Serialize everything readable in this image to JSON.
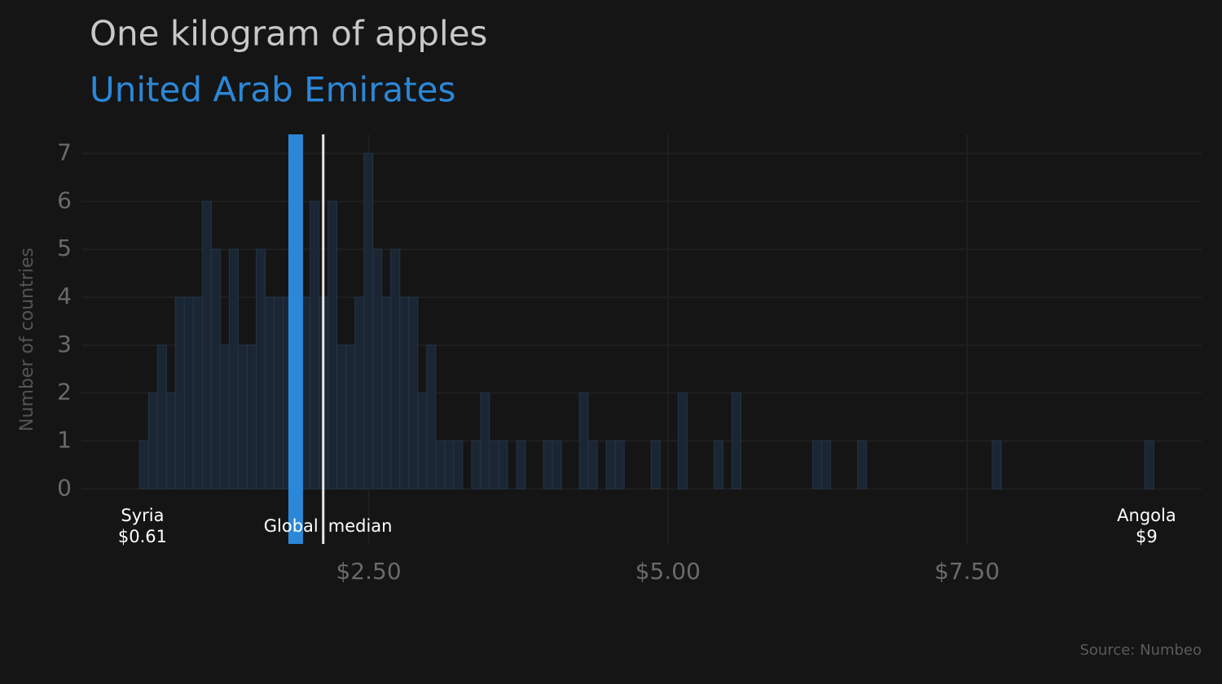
{
  "chart_data": {
    "type": "histogram",
    "title": "One kilogram of apples",
    "subtitle": "United Arab Emirates",
    "ylabel": "Number of countries",
    "source": "Source: Numbeo",
    "bins": [
      0.585,
      0.66,
      0.735,
      0.81,
      0.885,
      0.96,
      1.035,
      1.11,
      1.185,
      1.26,
      1.335,
      1.41,
      1.485,
      1.56,
      1.635,
      1.71,
      1.785,
      1.86,
      1.935,
      2.01,
      2.085,
      2.16,
      2.235,
      2.31,
      2.385,
      2.46,
      2.535,
      2.61,
      2.685,
      2.76,
      2.835,
      2.91,
      2.985,
      3.06,
      3.135,
      3.21,
      3.285,
      3.36,
      3.435,
      3.51,
      3.585,
      3.66,
      3.735,
      3.81,
      3.885,
      3.96,
      4.035,
      4.11,
      4.185,
      4.26,
      4.335,
      4.41,
      4.485,
      4.56,
      4.635,
      4.71,
      4.785,
      4.86,
      4.935,
      5.01,
      5.085,
      5.16,
      5.235,
      5.31,
      5.385,
      5.46,
      5.535,
      5.61,
      5.685,
      5.76,
      5.835,
      5.91,
      5.985,
      6.06,
      6.135,
      6.21,
      6.285,
      6.36,
      6.435,
      6.51,
      6.585,
      6.66,
      6.735,
      6.81,
      6.885,
      6.96,
      7.035,
      7.11,
      7.185,
      7.26,
      7.335,
      7.41,
      7.485,
      7.56,
      7.635,
      7.71,
      7.785,
      7.86,
      7.935,
      8.01,
      8.085,
      8.16,
      8.235,
      8.31,
      8.385,
      8.46,
      8.535,
      8.61,
      8.685,
      8.76,
      8.835,
      8.91,
      8.985,
      9.06
    ],
    "values": [
      1,
      2,
      3,
      2,
      4,
      4,
      4,
      6,
      5,
      3,
      5,
      3,
      3,
      5,
      4,
      4,
      4,
      5,
      4,
      6,
      4,
      6,
      3,
      3,
      4,
      7,
      5,
      4,
      5,
      4,
      4,
      2,
      3,
      1,
      1,
      1,
      0,
      1,
      2,
      1,
      1,
      0,
      1,
      0,
      0,
      1,
      1,
      0,
      0,
      2,
      1,
      0,
      1,
      1,
      0,
      0,
      0,
      1,
      0,
      0,
      2,
      0,
      0,
      0,
      1,
      0,
      2,
      0,
      0,
      0,
      0,
      0,
      0,
      0,
      0,
      1,
      1,
      0,
      0,
      0,
      1,
      0,
      0,
      0,
      0,
      0,
      0,
      0,
      0,
      0,
      0,
      0,
      0,
      0,
      0,
      1,
      0,
      0,
      0,
      0,
      0,
      0,
      0,
      0,
      0,
      0,
      0,
      0,
      0,
      0,
      0,
      0,
      1
    ],
    "color": "#1a2633",
    "edge_color": "#243446",
    "highlight": {
      "value": 1.89,
      "color": "#2b87d8"
    },
    "median": {
      "value": 2.12,
      "label_left": "Global",
      "label_right": "median",
      "color": "#e8e8e8"
    },
    "min_label": {
      "name": "Syria",
      "value": 0.61,
      "label": "$0.61"
    },
    "max_label": {
      "name": "Angola",
      "value": 9,
      "label": "$9"
    },
    "xlim": [
      0.1,
      9.46
    ],
    "ylim": [
      -1.15,
      7.4
    ],
    "xticks": [
      {
        "value": 2.5,
        "label": "$2.50"
      },
      {
        "value": 5,
        "label": "$5.00"
      },
      {
        "value": 7.5,
        "label": "$7.50"
      }
    ],
    "yticks": [
      0,
      1,
      2,
      3,
      4,
      5,
      6,
      7
    ],
    "grid": true
  }
}
